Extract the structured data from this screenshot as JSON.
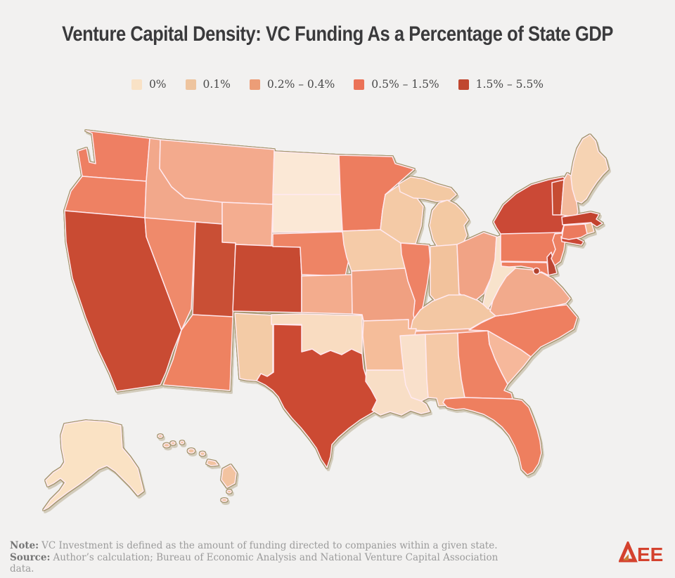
{
  "title": "Venture Capital Density: VC Funding As a Percentage of State GDP",
  "theme": {
    "background": "#F2F1F0",
    "title_color": "#3A3A3C",
    "state_border": "#FFE9EF",
    "nation_outline": "#A3946B",
    "legend_text": "#4A4A4A",
    "footer_text": "#9B9B9B",
    "footer_label": "#757575",
    "logo_red": "#D4422E",
    "logo_amber": "#C97B35"
  },
  "footer": {
    "note_label": "Note:",
    "note": "VC Investment is defined as the amount of funding directed to companies within a given state.",
    "source_label": "Source:",
    "source": "Author’s calculation; Bureau of Economic Analysis and National Venture Capital Association data."
  },
  "logo": {
    "text_ee": "EE",
    "name": "AEE"
  },
  "chart_data": {
    "type": "choropleth",
    "region": "United States, by state (incl. DC, AK, HI)",
    "title": "Venture Capital Density: VC Funding As a Percentage of State GDP",
    "unit": "VC funding as % of state GDP",
    "legend_position": "top-center",
    "bins": [
      {
        "label": "0%",
        "color": "#F9E2C6",
        "map_fill": "#FAE4CC"
      },
      {
        "label": "0.1%",
        "color": "#EEC49E",
        "map_fill": "#F3C9A4"
      },
      {
        "label": "0.2% – 0.4%",
        "color": "#EC9D77",
        "map_fill": "#F2A98B"
      },
      {
        "label": "0.5% – 1.5%",
        "color": "#EB7257",
        "map_fill": "#EE7E5F"
      },
      {
        "label": "1.5% – 5.5%",
        "color": "#C04730",
        "map_fill": "#C94B33"
      }
    ],
    "states": {
      "WA": {
        "name": "Washington",
        "bin": 3,
        "category": "0.5% – 1.5%",
        "fill": "#EE7F63"
      },
      "OR": {
        "name": "Oregon",
        "bin": 3,
        "category": "0.5% – 1.5%",
        "fill": "#EE8163"
      },
      "CA": {
        "name": "California",
        "bin": 4,
        "category": "1.5% – 5.5%",
        "fill": "#C94B33"
      },
      "NV": {
        "name": "Nevada",
        "bin": 3,
        "category": "0.5% – 1.5%",
        "fill": "#EF8A6B"
      },
      "ID": {
        "name": "Idaho",
        "bin": 2,
        "category": "0.2% – 0.4%",
        "fill": "#F2A88B"
      },
      "MT": {
        "name": "Montana",
        "bin": 2,
        "category": "0.2% – 0.4%",
        "fill": "#F3AA8D"
      },
      "WY": {
        "name": "Wyoming",
        "bin": 2,
        "category": "0.2% – 0.4%",
        "fill": "#F4AD90"
      },
      "UT": {
        "name": "Utah",
        "bin": 4,
        "category": "1.5% – 5.5%",
        "fill": "#C94F35"
      },
      "CO": {
        "name": "Colorado",
        "bin": 4,
        "category": "1.5% – 5.5%",
        "fill": "#C74A32"
      },
      "AZ": {
        "name": "Arizona",
        "bin": 3,
        "category": "0.5% – 1.5%",
        "fill": "#EE8261"
      },
      "NM": {
        "name": "New Mexico",
        "bin": 1,
        "category": "0.1%",
        "fill": "#F3CBA6"
      },
      "ND": {
        "name": "North Dakota",
        "bin": 0,
        "category": "0%",
        "fill": "#FBE8D6"
      },
      "SD": {
        "name": "South Dakota",
        "bin": 0,
        "category": "0%",
        "fill": "#FBE8D6"
      },
      "NE": {
        "name": "Nebraska",
        "bin": 3,
        "category": "0.5% – 1.5%",
        "fill": "#EE8465"
      },
      "KS": {
        "name": "Kansas",
        "bin": 2,
        "category": "0.2% – 0.4%",
        "fill": "#F3AC8D"
      },
      "OK": {
        "name": "Oklahoma",
        "bin": 0,
        "category": "0%",
        "fill": "#F9DCC1"
      },
      "TX": {
        "name": "Texas",
        "bin": 4,
        "category": "1.5% – 5.5%",
        "fill": "#CC4A33"
      },
      "MN": {
        "name": "Minnesota",
        "bin": 3,
        "category": "0.5% – 1.5%",
        "fill": "#ED7D5F"
      },
      "IA": {
        "name": "Iowa",
        "bin": 1,
        "category": "0.1%",
        "fill": "#F5CBA8"
      },
      "MO": {
        "name": "Missouri",
        "bin": 2,
        "category": "0.2% – 0.4%",
        "fill": "#F0A081"
      },
      "AR": {
        "name": "Arkansas",
        "bin": 1,
        "category": "0.1%",
        "fill": "#F5BD9A"
      },
      "LA": {
        "name": "Louisiana",
        "bin": 0,
        "category": "0%",
        "fill": "#F8DEC6"
      },
      "WI": {
        "name": "Wisconsin",
        "bin": 1,
        "category": "0.1%",
        "fill": "#F4CAA6"
      },
      "IL": {
        "name": "Illinois",
        "bin": 3,
        "category": "0.5% – 1.5%",
        "fill": "#EE8265"
      },
      "MI": {
        "name": "Michigan",
        "bin": 1,
        "category": "0.1%",
        "fill": "#F3C9A3"
      },
      "IN": {
        "name": "Indiana",
        "bin": 1,
        "category": "0.1%",
        "fill": "#F2C29C"
      },
      "OH": {
        "name": "Ohio",
        "bin": 2,
        "category": "0.2% – 0.4%",
        "fill": "#F1A385"
      },
      "KY": {
        "name": "Kentucky",
        "bin": 1,
        "category": "0.1%",
        "fill": "#F3C7A3"
      },
      "TN": {
        "name": "Tennessee",
        "bin": 2,
        "category": "0.2% – 0.4%",
        "fill": "#EFA183"
      },
      "MS": {
        "name": "Mississippi",
        "bin": 0,
        "category": "0%",
        "fill": "#F9E0CB"
      },
      "AL": {
        "name": "Alabama",
        "bin": 1,
        "category": "0.1%",
        "fill": "#F5C9A7"
      },
      "GA": {
        "name": "Georgia",
        "bin": 3,
        "category": "0.5% – 1.5%",
        "fill": "#EE8263"
      },
      "FL": {
        "name": "Florida",
        "bin": 3,
        "category": "0.5% – 1.5%",
        "fill": "#EE7F5F"
      },
      "SC": {
        "name": "South Carolina",
        "bin": 2,
        "category": "0.2% – 0.4%",
        "fill": "#F6B89B"
      },
      "NC": {
        "name": "North Carolina",
        "bin": 3,
        "category": "0.5% – 1.5%",
        "fill": "#EE7F60"
      },
      "VA": {
        "name": "Virginia",
        "bin": 2,
        "category": "0.2% – 0.4%",
        "fill": "#F2AA8C"
      },
      "WV": {
        "name": "West Virginia",
        "bin": 0,
        "category": "0%",
        "fill": "#F8E3CC"
      },
      "PA": {
        "name": "Pennsylvania",
        "bin": 3,
        "category": "0.5% – 1.5%",
        "fill": "#ED7C5E"
      },
      "NY": {
        "name": "New York",
        "bin": 4,
        "category": "1.5% – 5.5%",
        "fill": "#CB4936"
      },
      "NJ": {
        "name": "New Jersey",
        "bin": 3,
        "category": "0.5% – 1.5%",
        "fill": "#ED8163"
      },
      "DE": {
        "name": "Delaware",
        "bin": 4,
        "category": "1.5% – 5.5%",
        "fill": "#BC4734"
      },
      "MD": {
        "name": "Maryland",
        "bin": 3,
        "category": "0.5% – 1.5%",
        "fill": "#ED7E60"
      },
      "DC": {
        "name": "District of Columbia",
        "bin": 4,
        "category": "1.5% – 5.5%",
        "fill": "#B2422C"
      },
      "VT": {
        "name": "Vermont",
        "bin": 4,
        "category": "1.5% – 5.5%",
        "fill": "#C64C33"
      },
      "NH": {
        "name": "New Hampshire",
        "bin": 2,
        "category": "0.2% – 0.4%",
        "fill": "#F3BA9C"
      },
      "ME": {
        "name": "Maine",
        "bin": 1,
        "category": "0.1%",
        "fill": "#F6D3B3"
      },
      "MA": {
        "name": "Massachusetts",
        "bin": 4,
        "category": "1.5% – 5.5%",
        "fill": "#C3432E"
      },
      "RI": {
        "name": "Rhode Island",
        "bin": 1,
        "category": "0.1%",
        "fill": "#EFBD96"
      },
      "CT": {
        "name": "Connecticut",
        "bin": 3,
        "category": "0.5% – 1.5%",
        "fill": "#EC7A5E"
      },
      "AK": {
        "name": "Alaska",
        "bin": 0,
        "category": "0%",
        "fill": "#FAE2C4"
      },
      "HI": {
        "name": "Hawaii",
        "bin": 1,
        "category": "0.1%",
        "fill": "#F2C3A0"
      }
    }
  }
}
